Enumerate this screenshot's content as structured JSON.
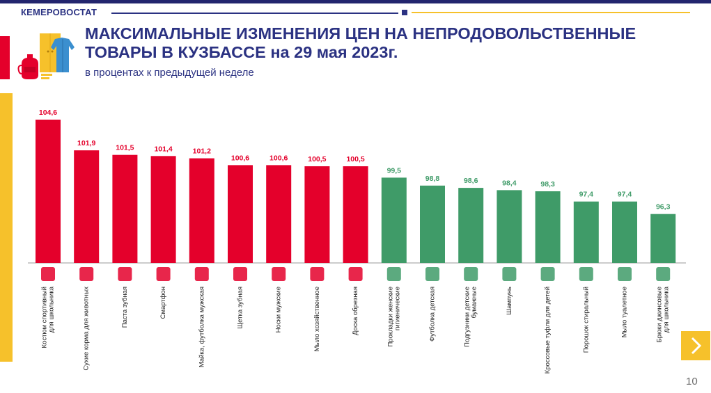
{
  "header": {
    "brand": "КЕМЕРОВОСТАТ",
    "title_line1": "МАКСИМАЛЬНЫЕ ИЗМЕНЕНИЯ ЦЕН НА НЕПРОДОВОЛЬСТВЕННЫЕ",
    "title_line2": "ТОВАРЫ В КУЗБАССЕ на 29 мая 2023г.",
    "subtitle": "в процентах к предыдущей неделе"
  },
  "footer": {
    "page_number": "10",
    "next_icon": "chevron-right-icon"
  },
  "colors": {
    "brand_blue": "#2b3282",
    "increase_red": "#e4002b",
    "decrease_green": "#3f9b68",
    "accent_yellow": "#f6c12b"
  },
  "chart_data": {
    "type": "bar",
    "categories": [
      "Костюм спортивный для школьника",
      "Сухие корма для животных",
      "Паста зубная",
      "Смартфон",
      "Майка, футболка мужская",
      "Щетка зубная",
      "Носки мужские",
      "Мыло хозяйственное",
      "Доска обрезная",
      "Прокладки женские гигиенические",
      "Футболка детская",
      "Подгузники детские бумажные",
      "Шампунь",
      "Кроссовые туфли для детей",
      "Порошок стиральный",
      "Мыло туалетное",
      "Брюки джинсовые для школьника"
    ],
    "category_lines": [
      [
        "Костюм спортивный",
        "для школьника"
      ],
      [
        "Сухие корма для животных"
      ],
      [
        "Паста зубная"
      ],
      [
        "Смартфон"
      ],
      [
        "Майка, футболка мужская"
      ],
      [
        "Щетка зубная"
      ],
      [
        "Носки мужские"
      ],
      [
        "Мыло хозяйственное"
      ],
      [
        "Доска обрезная"
      ],
      [
        "Прокладки женские",
        "гигиенические"
      ],
      [
        "Футболка детская"
      ],
      [
        "Подгузники детские",
        "бумажные"
      ],
      [
        "Шампунь"
      ],
      [
        "Кроссовые туфли для детей"
      ],
      [
        "Порошок стиральный"
      ],
      [
        "Мыло туалетное"
      ],
      [
        "Брюки джинсовые",
        "для школьника"
      ]
    ],
    "values": [
      104.6,
      101.9,
      101.5,
      101.4,
      101.2,
      100.6,
      100.6,
      100.5,
      100.5,
      99.5,
      98.8,
      98.6,
      98.4,
      98.3,
      97.4,
      97.4,
      96.3
    ],
    "value_labels": [
      "104,6",
      "101,9",
      "101,5",
      "101,4",
      "101,2",
      "100,6",
      "100,6",
      "100,5",
      "100,5",
      "99,5",
      "98,8",
      "98,6",
      "98,4",
      "98,3",
      "97,4",
      "97,4",
      "96,3"
    ],
    "icons": [
      "tracksuit-icon",
      "pet-food-bowl-icon",
      "toothpaste-icon",
      "smartphone-icon",
      "tank-top-icon",
      "toothbrush-icon",
      "socks-icon",
      "laundry-soap-icon",
      "plank-icon",
      "pads-icon",
      "kids-tshirt-icon",
      "diaper-icon",
      "shampoo-icon",
      "sneaker-icon",
      "detergent-icon",
      "toilet-soap-icon",
      "jeans-icon"
    ],
    "ylim": [
      92,
      105
    ],
    "grid": false,
    "legend": "none"
  }
}
